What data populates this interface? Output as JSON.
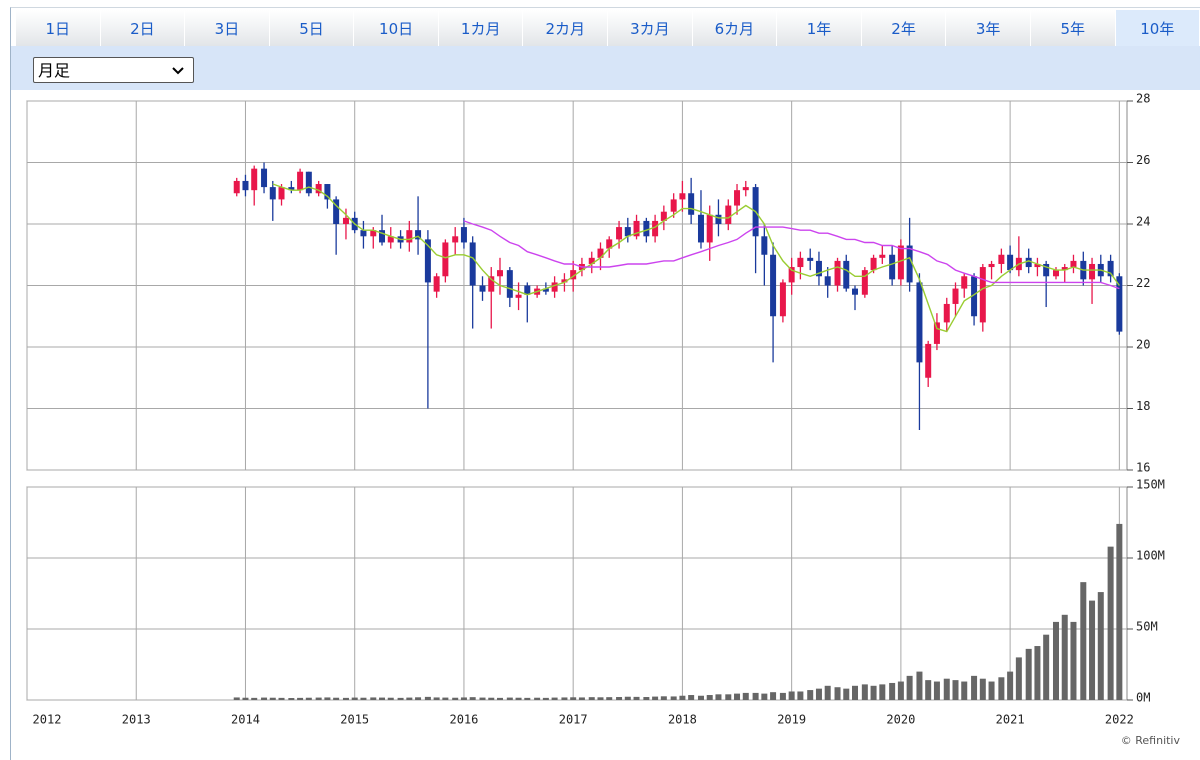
{
  "tabs": [
    "1日",
    "2日",
    "3日",
    "5日",
    "10日",
    "1カ月",
    "2カ月",
    "3カ月",
    "6カ月",
    "1年",
    "2年",
    "3年",
    "5年",
    "10年"
  ],
  "active_tab": 13,
  "period_select": "月足",
  "credit": "© Refinitiv",
  "chart_data": [
    {
      "type": "candlestick",
      "x": [
        2013.92,
        2014,
        2014.08,
        2014.17,
        2014.25,
        2014.33,
        2014.42,
        2014.5,
        2014.58,
        2014.67,
        2014.75,
        2014.83,
        2014.92,
        2015,
        2015.08,
        2015.17,
        2015.25,
        2015.33,
        2015.42,
        2015.5,
        2015.58,
        2015.67,
        2015.75,
        2015.83,
        2015.92,
        2016,
        2016.08,
        2016.17,
        2016.25,
        2016.33,
        2016.42,
        2016.5,
        2016.58,
        2016.67,
        2016.75,
        2016.83,
        2016.92,
        2017,
        2017.08,
        2017.17,
        2017.25,
        2017.33,
        2017.42,
        2017.5,
        2017.58,
        2017.67,
        2017.75,
        2017.83,
        2017.92,
        2018,
        2018.08,
        2018.17,
        2018.25,
        2018.33,
        2018.42,
        2018.5,
        2018.58,
        2018.67,
        2018.75,
        2018.83,
        2018.92,
        2019,
        2019.08,
        2019.17,
        2019.25,
        2019.33,
        2019.42,
        2019.5,
        2019.58,
        2019.67,
        2019.75,
        2019.83,
        2019.92,
        2020,
        2020.08,
        2020.17,
        2020.25,
        2020.33,
        2020.42,
        2020.5,
        2020.58,
        2020.67,
        2020.75,
        2020.83,
        2020.92,
        2021,
        2021.08,
        2021.17,
        2021.25,
        2021.33,
        2021.42,
        2021.5,
        2021.58,
        2021.67,
        2021.75,
        2021.83,
        2021.92,
        2022
      ],
      "open": [
        25.0,
        25.4,
        25.1,
        25.8,
        25.2,
        24.8,
        25.2,
        25.1,
        25.7,
        25.0,
        25.3,
        24.8,
        24.0,
        24.2,
        23.8,
        23.6,
        23.8,
        23.4,
        23.6,
        23.4,
        23.8,
        23.5,
        21.8,
        22.3,
        23.4,
        23.9,
        23.4,
        22.0,
        21.8,
        22.3,
        22.5,
        21.6,
        22.0,
        21.7,
        21.9,
        21.8,
        22.1,
        22.2,
        22.5,
        22.7,
        22.9,
        23.2,
        23.5,
        23.9,
        23.6,
        24.1,
        23.6,
        24.1,
        24.4,
        24.8,
        25.0,
        24.3,
        23.4,
        24.3,
        24.0,
        24.6,
        25.1,
        25.2,
        23.6,
        23.0,
        21.0,
        22.1,
        22.6,
        22.9,
        22.8,
        22.3,
        22.0,
        22.8,
        21.9,
        21.7,
        22.5,
        22.9,
        23.0,
        22.2,
        23.3,
        22.1,
        19.0,
        20.1,
        20.8,
        21.4,
        21.9,
        22.3,
        20.8,
        22.6,
        22.7,
        23.0,
        22.5,
        22.9,
        22.6,
        22.7,
        22.3,
        22.5,
        22.6,
        22.8,
        22.2,
        22.7,
        22.8,
        22.3
      ],
      "high": [
        25.5,
        25.6,
        25.9,
        26.0,
        25.4,
        25.3,
        25.4,
        25.8,
        25.7,
        25.4,
        25.3,
        24.9,
        24.5,
        24.4,
        24.1,
        23.9,
        24.3,
        23.9,
        23.8,
        24.1,
        24.9,
        23.8,
        22.4,
        23.5,
        23.9,
        24.2,
        23.6,
        22.3,
        22.6,
        22.9,
        22.6,
        22.1,
        22.1,
        22.0,
        22.1,
        22.3,
        22.4,
        22.8,
        22.9,
        23.1,
        23.4,
        23.6,
        24.1,
        24.2,
        24.3,
        24.2,
        24.3,
        24.6,
        25.0,
        25.4,
        25.5,
        25.1,
        24.6,
        24.8,
        24.8,
        25.3,
        25.4,
        25.3,
        24.0,
        23.4,
        22.2,
        22.9,
        23.1,
        23.2,
        23.1,
        22.6,
        22.9,
        23.0,
        22.0,
        22.6,
        23.0,
        23.3,
        23.3,
        23.5,
        24.2,
        22.4,
        20.2,
        21.1,
        21.6,
        22.1,
        22.4,
        22.4,
        22.7,
        22.8,
        23.2,
        23.3,
        23.6,
        23.2,
        22.9,
        22.8,
        22.6,
        22.7,
        23.0,
        23.1,
        22.9,
        23.0,
        23.0,
        22.4
      ],
      "low": [
        24.9,
        24.9,
        24.6,
        25.0,
        24.1,
        24.6,
        25.0,
        25.0,
        24.9,
        24.9,
        24.5,
        23.0,
        23.5,
        23.7,
        23.2,
        23.2,
        23.3,
        23.2,
        23.2,
        23.1,
        23.0,
        18.0,
        21.6,
        22.1,
        23.0,
        23.2,
        20.6,
        21.5,
        20.6,
        21.7,
        21.3,
        21.2,
        20.8,
        21.6,
        21.7,
        21.6,
        21.8,
        21.8,
        22.3,
        22.4,
        22.5,
        22.9,
        23.2,
        23.4,
        23.5,
        23.4,
        23.4,
        23.8,
        24.2,
        24.4,
        24.0,
        23.2,
        22.8,
        23.6,
        23.8,
        24.3,
        24.9,
        22.4,
        22.0,
        19.5,
        20.8,
        21.7,
        22.2,
        22.5,
        22.0,
        21.6,
        21.8,
        21.8,
        21.2,
        21.6,
        22.4,
        22.7,
        22.0,
        22.0,
        21.8,
        17.3,
        18.7,
        19.9,
        20.5,
        21.0,
        21.6,
        20.7,
        20.5,
        22.2,
        22.4,
        22.4,
        22.3,
        22.4,
        22.3,
        21.3,
        22.2,
        22.1,
        22.4,
        22.0,
        21.4,
        22.1,
        22.1,
        20.4
      ],
      "close": [
        25.4,
        25.1,
        25.8,
        25.2,
        24.8,
        25.2,
        25.1,
        25.7,
        25.0,
        25.3,
        24.8,
        24.0,
        24.2,
        23.8,
        23.6,
        23.8,
        23.4,
        23.6,
        23.4,
        23.8,
        23.5,
        22.1,
        22.3,
        23.4,
        23.6,
        23.4,
        22.0,
        21.8,
        22.3,
        22.5,
        21.6,
        21.7,
        21.7,
        21.9,
        21.8,
        22.1,
        22.2,
        22.5,
        22.7,
        22.9,
        23.2,
        23.5,
        23.9,
        23.6,
        24.1,
        23.6,
        24.1,
        24.4,
        24.8,
        25.0,
        24.3,
        23.4,
        24.3,
        24.0,
        24.6,
        25.1,
        25.2,
        23.6,
        23.0,
        21.0,
        22.1,
        22.6,
        22.9,
        22.8,
        22.3,
        22.0,
        22.8,
        21.9,
        21.7,
        22.5,
        22.9,
        23.0,
        22.2,
        23.3,
        22.1,
        19.5,
        20.1,
        20.8,
        21.4,
        21.9,
        22.3,
        21.0,
        22.6,
        22.7,
        23.0,
        22.5,
        22.9,
        22.6,
        22.7,
        22.3,
        22.5,
        22.6,
        22.8,
        22.2,
        22.7,
        22.3,
        22.3,
        20.5
      ],
      "up_color": "#e8174b",
      "down_color": "#1a3a9c",
      "series": [
        {
          "color": "#9acd32",
          "values": [
            null,
            null,
            null,
            null,
            25.3,
            25.2,
            25.1,
            25.1,
            25.2,
            25.1,
            24.9,
            24.6,
            24.3,
            24.0,
            23.8,
            23.8,
            23.7,
            23.6,
            23.5,
            23.5,
            23.6,
            23.3,
            23.0,
            22.9,
            23.0,
            23.0,
            22.9,
            22.5,
            22.2,
            22.0,
            21.9,
            21.8,
            21.7,
            21.8,
            21.9,
            22.0,
            22.1,
            22.3,
            22.5,
            22.7,
            22.9,
            23.2,
            23.4,
            23.6,
            23.7,
            23.8,
            23.9,
            24.1,
            24.3,
            24.5,
            24.5,
            24.4,
            24.3,
            24.2,
            24.2,
            24.4,
            24.6,
            24.4,
            24.0,
            23.3,
            22.8,
            22.5,
            22.4,
            22.3,
            22.4,
            22.5,
            22.6,
            22.5,
            22.3,
            22.3,
            22.5,
            22.6,
            22.7,
            22.8,
            22.9,
            22.2,
            21.4,
            20.6,
            20.5,
            21.0,
            21.5,
            21.7,
            21.9,
            22.0,
            22.3,
            22.5,
            22.7,
            22.8,
            22.7,
            22.6,
            22.5,
            22.5,
            22.6,
            22.5,
            22.5,
            22.5,
            22.4,
            22.0
          ]
        },
        {
          "color": "#cc44ee",
          "values": [
            null,
            null,
            null,
            null,
            null,
            null,
            null,
            null,
            null,
            null,
            null,
            null,
            null,
            null,
            null,
            null,
            null,
            null,
            null,
            null,
            null,
            null,
            null,
            null,
            null,
            24.1,
            24.0,
            23.9,
            23.8,
            23.6,
            23.4,
            23.3,
            23.1,
            23.0,
            22.9,
            22.8,
            22.7,
            22.7,
            22.6,
            22.6,
            22.6,
            22.6,
            22.65,
            22.7,
            22.7,
            22.7,
            22.75,
            22.8,
            22.8,
            22.9,
            23.0,
            23.1,
            23.2,
            23.3,
            23.4,
            23.5,
            23.7,
            23.9,
            23.9,
            23.9,
            23.9,
            23.85,
            23.8,
            23.8,
            23.7,
            23.7,
            23.6,
            23.5,
            23.5,
            23.4,
            23.4,
            23.3,
            23.3,
            23.2,
            23.2,
            23.1,
            23.0,
            22.8,
            22.7,
            22.5,
            22.4,
            22.3,
            22.2,
            22.1,
            22.1,
            22.1,
            22.1,
            22.1,
            22.1,
            22.1,
            22.1,
            22.1,
            22.1,
            22.1,
            22.1,
            22.1,
            22.0,
            21.9
          ]
        }
      ],
      "xlim": [
        2012,
        2022.07
      ],
      "xticks": [
        2012,
        2013,
        2014,
        2015,
        2016,
        2017,
        2018,
        2019,
        2020,
        2021,
        2022
      ],
      "ylim": [
        16,
        28
      ],
      "yticks": [
        16,
        18,
        20,
        22,
        24,
        26,
        28
      ],
      "grid": true
    },
    {
      "type": "bar",
      "x": [
        2013.92,
        2014,
        2014.08,
        2014.17,
        2014.25,
        2014.33,
        2014.42,
        2014.5,
        2014.58,
        2014.67,
        2014.75,
        2014.83,
        2014.92,
        2015,
        2015.08,
        2015.17,
        2015.25,
        2015.33,
        2015.42,
        2015.5,
        2015.58,
        2015.67,
        2015.75,
        2015.83,
        2015.92,
        2016,
        2016.08,
        2016.17,
        2016.25,
        2016.33,
        2016.42,
        2016.5,
        2016.58,
        2016.67,
        2016.75,
        2016.83,
        2016.92,
        2017,
        2017.08,
        2017.17,
        2017.25,
        2017.33,
        2017.42,
        2017.5,
        2017.58,
        2017.67,
        2017.75,
        2017.83,
        2017.92,
        2018,
        2018.08,
        2018.17,
        2018.25,
        2018.33,
        2018.42,
        2018.5,
        2018.58,
        2018.67,
        2018.75,
        2018.83,
        2018.92,
        2019,
        2019.08,
        2019.17,
        2019.25,
        2019.33,
        2019.42,
        2019.5,
        2019.58,
        2019.67,
        2019.75,
        2019.83,
        2019.92,
        2020,
        2020.08,
        2020.17,
        2020.25,
        2020.33,
        2020.42,
        2020.5,
        2020.58,
        2020.67,
        2020.75,
        2020.83,
        2020.92,
        2021,
        2021.08,
        2021.17,
        2021.25,
        2021.33,
        2021.42,
        2021.5,
        2021.58,
        2021.67,
        2021.75,
        2021.83,
        2021.92,
        2022
      ],
      "values": [
        1800000,
        1600000,
        1500000,
        1700000,
        1600000,
        1500000,
        1400000,
        1500000,
        1600000,
        1700000,
        1800000,
        1600000,
        1500000,
        1700000,
        1600000,
        1800000,
        1700000,
        1600000,
        1500000,
        1700000,
        1900000,
        2200000,
        1800000,
        1700000,
        1600000,
        1800000,
        2000000,
        1700000,
        1600000,
        1500000,
        1700000,
        1600000,
        1500000,
        1600000,
        1500000,
        1700000,
        1800000,
        1900000,
        1800000,
        2000000,
        1900000,
        2000000,
        2100000,
        2300000,
        2200000,
        2100000,
        2400000,
        2600000,
        2500000,
        3000000,
        3500000,
        3000000,
        3500000,
        4000000,
        4000000,
        4500000,
        5000000,
        5000000,
        4500000,
        5500000,
        5000000,
        6000000,
        6000000,
        7000000,
        8000000,
        10000000,
        9000000,
        8000000,
        10000000,
        11000000,
        10000000,
        11000000,
        12000000,
        13000000,
        17000000,
        20000000,
        14000000,
        13000000,
        15000000,
        14000000,
        13000000,
        17000000,
        15000000,
        13000000,
        16000000,
        20000000,
        30000000,
        36000000,
        38000000,
        46000000,
        55000000,
        60000000,
        55000000,
        83000000,
        70000000,
        76000000,
        108000000,
        124000000
      ],
      "color": "#666666",
      "xlim": [
        2012,
        2022.07
      ],
      "xticks": [
        2012,
        2013,
        2014,
        2015,
        2016,
        2017,
        2018,
        2019,
        2020,
        2021,
        2022
      ],
      "ylim": [
        0,
        150000000
      ],
      "yticks": [
        {
          "value": 0,
          "label": "0M"
        },
        {
          "value": 50000000,
          "label": "50M"
        },
        {
          "value": 100000000,
          "label": "100M"
        },
        {
          "value": 150000000,
          "label": "150M"
        }
      ],
      "grid": true
    }
  ]
}
